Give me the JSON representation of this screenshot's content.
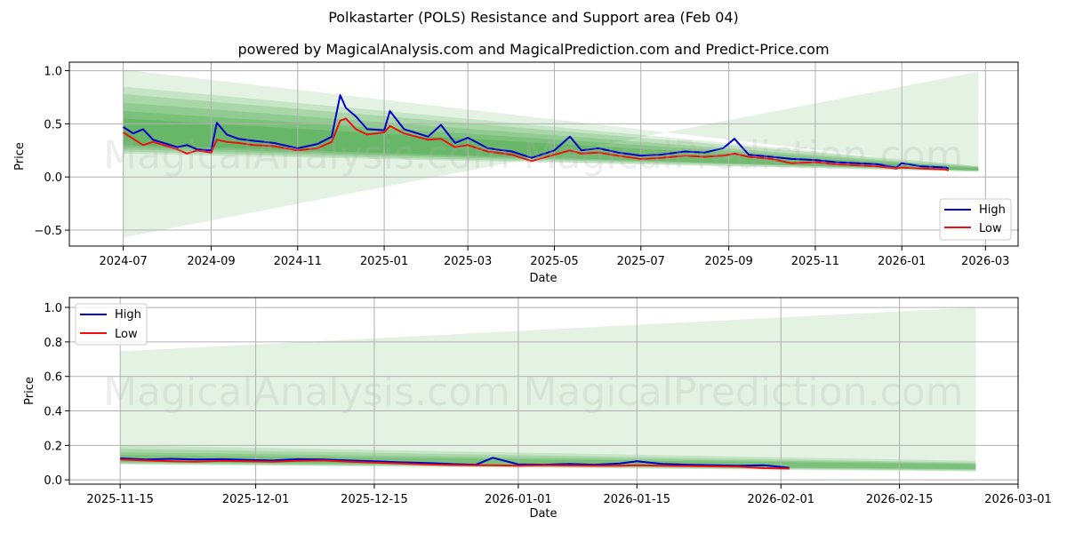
{
  "header": {
    "title": "Polkastarter (POLS) Resistance and Support area (Feb 04)",
    "subtitle": "powered by MagicalAnalysis.com and MagicalPrediction.com and Predict-Price.com"
  },
  "watermarks": [
    "MagicalAnalysis.com",
    "MagicalPrediction.com"
  ],
  "colors": {
    "high": "#0000cc",
    "low": "#ee1111",
    "band": "#2e9a2e",
    "grid": "#b0b0b0"
  },
  "chart_data": [
    {
      "type": "line",
      "title": "",
      "xlabel": "Date",
      "ylabel": "Price",
      "x_ticks": [
        "2024-07",
        "2024-09",
        "2024-11",
        "2025-01",
        "2025-03",
        "2025-05",
        "2025-07",
        "2025-09",
        "2025-11",
        "2026-01",
        "2026-03"
      ],
      "y_ticks": [
        "−0.5",
        "0.0",
        "0.5",
        "1.0"
      ],
      "ylim": [
        -0.65,
        1.08
      ],
      "grid": true,
      "legend": {
        "position": "lower right",
        "entries": [
          "High",
          "Low"
        ]
      },
      "series": [
        {
          "name": "High",
          "x": [
            "2024-07-01",
            "2024-07-08",
            "2024-07-15",
            "2024-07-22",
            "2024-08-01",
            "2024-08-08",
            "2024-08-15",
            "2024-08-22",
            "2024-09-01",
            "2024-09-05",
            "2024-09-12",
            "2024-09-20",
            "2024-10-01",
            "2024-10-15",
            "2024-11-01",
            "2024-11-15",
            "2024-11-25",
            "2024-12-01",
            "2024-12-05",
            "2024-12-12",
            "2024-12-20",
            "2025-01-01",
            "2025-01-05",
            "2025-01-15",
            "2025-02-01",
            "2025-02-10",
            "2025-02-20",
            "2025-03-01",
            "2025-03-15",
            "2025-04-01",
            "2025-04-15",
            "2025-05-01",
            "2025-05-12",
            "2025-05-20",
            "2025-06-01",
            "2025-06-15",
            "2025-07-01",
            "2025-07-15",
            "2025-08-01",
            "2025-08-15",
            "2025-08-28",
            "2025-09-05",
            "2025-09-15",
            "2025-10-01",
            "2025-10-15",
            "2025-11-01",
            "2025-11-15",
            "2025-12-01",
            "2025-12-15",
            "2025-12-28",
            "2026-01-01",
            "2026-01-15",
            "2026-02-01",
            "2026-02-03"
          ],
          "values": [
            0.47,
            0.41,
            0.45,
            0.35,
            0.31,
            0.28,
            0.3,
            0.26,
            0.25,
            0.51,
            0.4,
            0.36,
            0.34,
            0.32,
            0.27,
            0.31,
            0.38,
            0.77,
            0.65,
            0.57,
            0.45,
            0.44,
            0.62,
            0.45,
            0.38,
            0.49,
            0.32,
            0.37,
            0.27,
            0.24,
            0.18,
            0.25,
            0.38,
            0.25,
            0.27,
            0.23,
            0.2,
            0.21,
            0.24,
            0.23,
            0.27,
            0.36,
            0.21,
            0.19,
            0.17,
            0.16,
            0.14,
            0.13,
            0.12,
            0.09,
            0.13,
            0.1,
            0.09,
            0.08
          ]
        },
        {
          "name": "Low",
          "x": [
            "2024-07-01",
            "2024-07-08",
            "2024-07-15",
            "2024-07-22",
            "2024-08-01",
            "2024-08-08",
            "2024-08-15",
            "2024-08-22",
            "2024-09-01",
            "2024-09-05",
            "2024-09-12",
            "2024-09-20",
            "2024-10-01",
            "2024-10-15",
            "2024-11-01",
            "2024-11-15",
            "2024-11-25",
            "2024-12-01",
            "2024-12-05",
            "2024-12-12",
            "2024-12-20",
            "2025-01-01",
            "2025-01-05",
            "2025-01-15",
            "2025-02-01",
            "2025-02-10",
            "2025-02-20",
            "2025-03-01",
            "2025-03-15",
            "2025-04-01",
            "2025-04-15",
            "2025-05-01",
            "2025-05-12",
            "2025-05-20",
            "2025-06-01",
            "2025-06-15",
            "2025-07-01",
            "2025-07-15",
            "2025-08-01",
            "2025-08-15",
            "2025-08-28",
            "2025-09-05",
            "2025-09-15",
            "2025-10-01",
            "2025-10-15",
            "2025-11-01",
            "2025-11-15",
            "2025-12-01",
            "2025-12-15",
            "2025-12-28",
            "2026-01-01",
            "2026-01-15",
            "2026-02-01",
            "2026-02-03"
          ],
          "values": [
            0.42,
            0.36,
            0.3,
            0.33,
            0.29,
            0.26,
            0.22,
            0.25,
            0.23,
            0.35,
            0.33,
            0.32,
            0.3,
            0.29,
            0.25,
            0.27,
            0.33,
            0.53,
            0.55,
            0.45,
            0.4,
            0.42,
            0.48,
            0.41,
            0.35,
            0.36,
            0.28,
            0.3,
            0.24,
            0.21,
            0.15,
            0.21,
            0.25,
            0.22,
            0.23,
            0.2,
            0.17,
            0.18,
            0.2,
            0.19,
            0.2,
            0.22,
            0.19,
            0.17,
            0.13,
            0.14,
            0.12,
            0.11,
            0.1,
            0.08,
            0.09,
            0.08,
            0.07,
            0.06
          ]
        }
      ],
      "bands": {
        "start": "2024-07-01",
        "end": "2026-02-24",
        "outer_upper": [
          1.01,
          0.08
        ],
        "outer_lower": [
          -0.57,
          0.99
        ],
        "inner": [
          {
            "upper": [
              0.85,
              0.1
            ],
            "lower": [
              0.22,
              0.05
            ]
          },
          {
            "upper": [
              0.78,
              0.1
            ],
            "lower": [
              0.24,
              0.05
            ]
          },
          {
            "upper": [
              0.7,
              0.09
            ],
            "lower": [
              0.26,
              0.06
            ]
          },
          {
            "upper": [
              0.62,
              0.09
            ],
            "lower": [
              0.28,
              0.06
            ]
          },
          {
            "upper": [
              0.55,
              0.08
            ],
            "lower": [
              0.3,
              0.06
            ]
          }
        ]
      }
    },
    {
      "type": "line",
      "title": "",
      "xlabel": "Date",
      "ylabel": "Price",
      "x_ticks": [
        "2025-11-15",
        "2025-12-01",
        "2025-12-15",
        "2026-01-01",
        "2026-01-15",
        "2026-02-01",
        "2026-02-15",
        "2026-03-01"
      ],
      "y_ticks": [
        "0.0",
        "0.2",
        "0.4",
        "0.6",
        "0.8",
        "1.0"
      ],
      "ylim": [
        -0.02,
        1.06
      ],
      "grid": true,
      "legend": {
        "position": "upper left",
        "entries": [
          "High",
          "Low"
        ]
      },
      "series": [
        {
          "name": "High",
          "x": [
            "2025-11-15",
            "2025-11-18",
            "2025-11-21",
            "2025-11-24",
            "2025-11-27",
            "2025-11-30",
            "2025-12-03",
            "2025-12-06",
            "2025-12-09",
            "2025-12-12",
            "2025-12-15",
            "2025-12-18",
            "2025-12-21",
            "2025-12-24",
            "2025-12-27",
            "2025-12-29",
            "2026-01-01",
            "2026-01-04",
            "2026-01-07",
            "2026-01-10",
            "2026-01-13",
            "2026-01-15",
            "2026-01-18",
            "2026-01-21",
            "2026-01-24",
            "2026-01-27",
            "2026-01-30",
            "2026-02-02"
          ],
          "values": [
            0.125,
            0.118,
            0.122,
            0.118,
            0.12,
            0.115,
            0.112,
            0.12,
            0.118,
            0.112,
            0.108,
            0.102,
            0.098,
            0.092,
            0.088,
            0.128,
            0.09,
            0.088,
            0.092,
            0.088,
            0.095,
            0.108,
            0.092,
            0.088,
            0.085,
            0.082,
            0.085,
            0.07
          ]
        },
        {
          "name": "Low",
          "x": [
            "2025-11-15",
            "2025-11-18",
            "2025-11-21",
            "2025-11-24",
            "2025-11-27",
            "2025-11-30",
            "2025-12-03",
            "2025-12-06",
            "2025-12-09",
            "2025-12-12",
            "2025-12-15",
            "2025-12-18",
            "2025-12-21",
            "2025-12-24",
            "2025-12-27",
            "2025-12-29",
            "2026-01-01",
            "2026-01-04",
            "2026-01-07",
            "2026-01-10",
            "2026-01-13",
            "2026-01-15",
            "2026-01-18",
            "2026-01-21",
            "2026-01-24",
            "2026-01-27",
            "2026-01-30",
            "2026-02-02"
          ],
          "values": [
            0.118,
            0.112,
            0.108,
            0.105,
            0.11,
            0.108,
            0.105,
            0.11,
            0.112,
            0.105,
            0.1,
            0.095,
            0.09,
            0.086,
            0.084,
            0.085,
            0.082,
            0.084,
            0.083,
            0.082,
            0.082,
            0.084,
            0.082,
            0.08,
            0.078,
            0.076,
            0.068,
            0.065
          ]
        }
      ],
      "bands": {
        "start": "2025-11-15",
        "end": "2026-02-24",
        "outer_upper": [
          0.745,
          1.0
        ],
        "outer_lower": [
          0.09,
          0.05
        ],
        "inner": [
          {
            "upper": [
              0.2,
              0.11
            ],
            "lower": [
              0.09,
              0.05
            ]
          },
          {
            "upper": [
              0.18,
              0.1
            ],
            "lower": [
              0.095,
              0.055
            ]
          },
          {
            "upper": [
              0.16,
              0.095
            ],
            "lower": [
              0.1,
              0.06
            ]
          },
          {
            "upper": [
              0.145,
              0.09
            ],
            "lower": [
              0.105,
              0.062
            ]
          }
        ]
      }
    }
  ]
}
